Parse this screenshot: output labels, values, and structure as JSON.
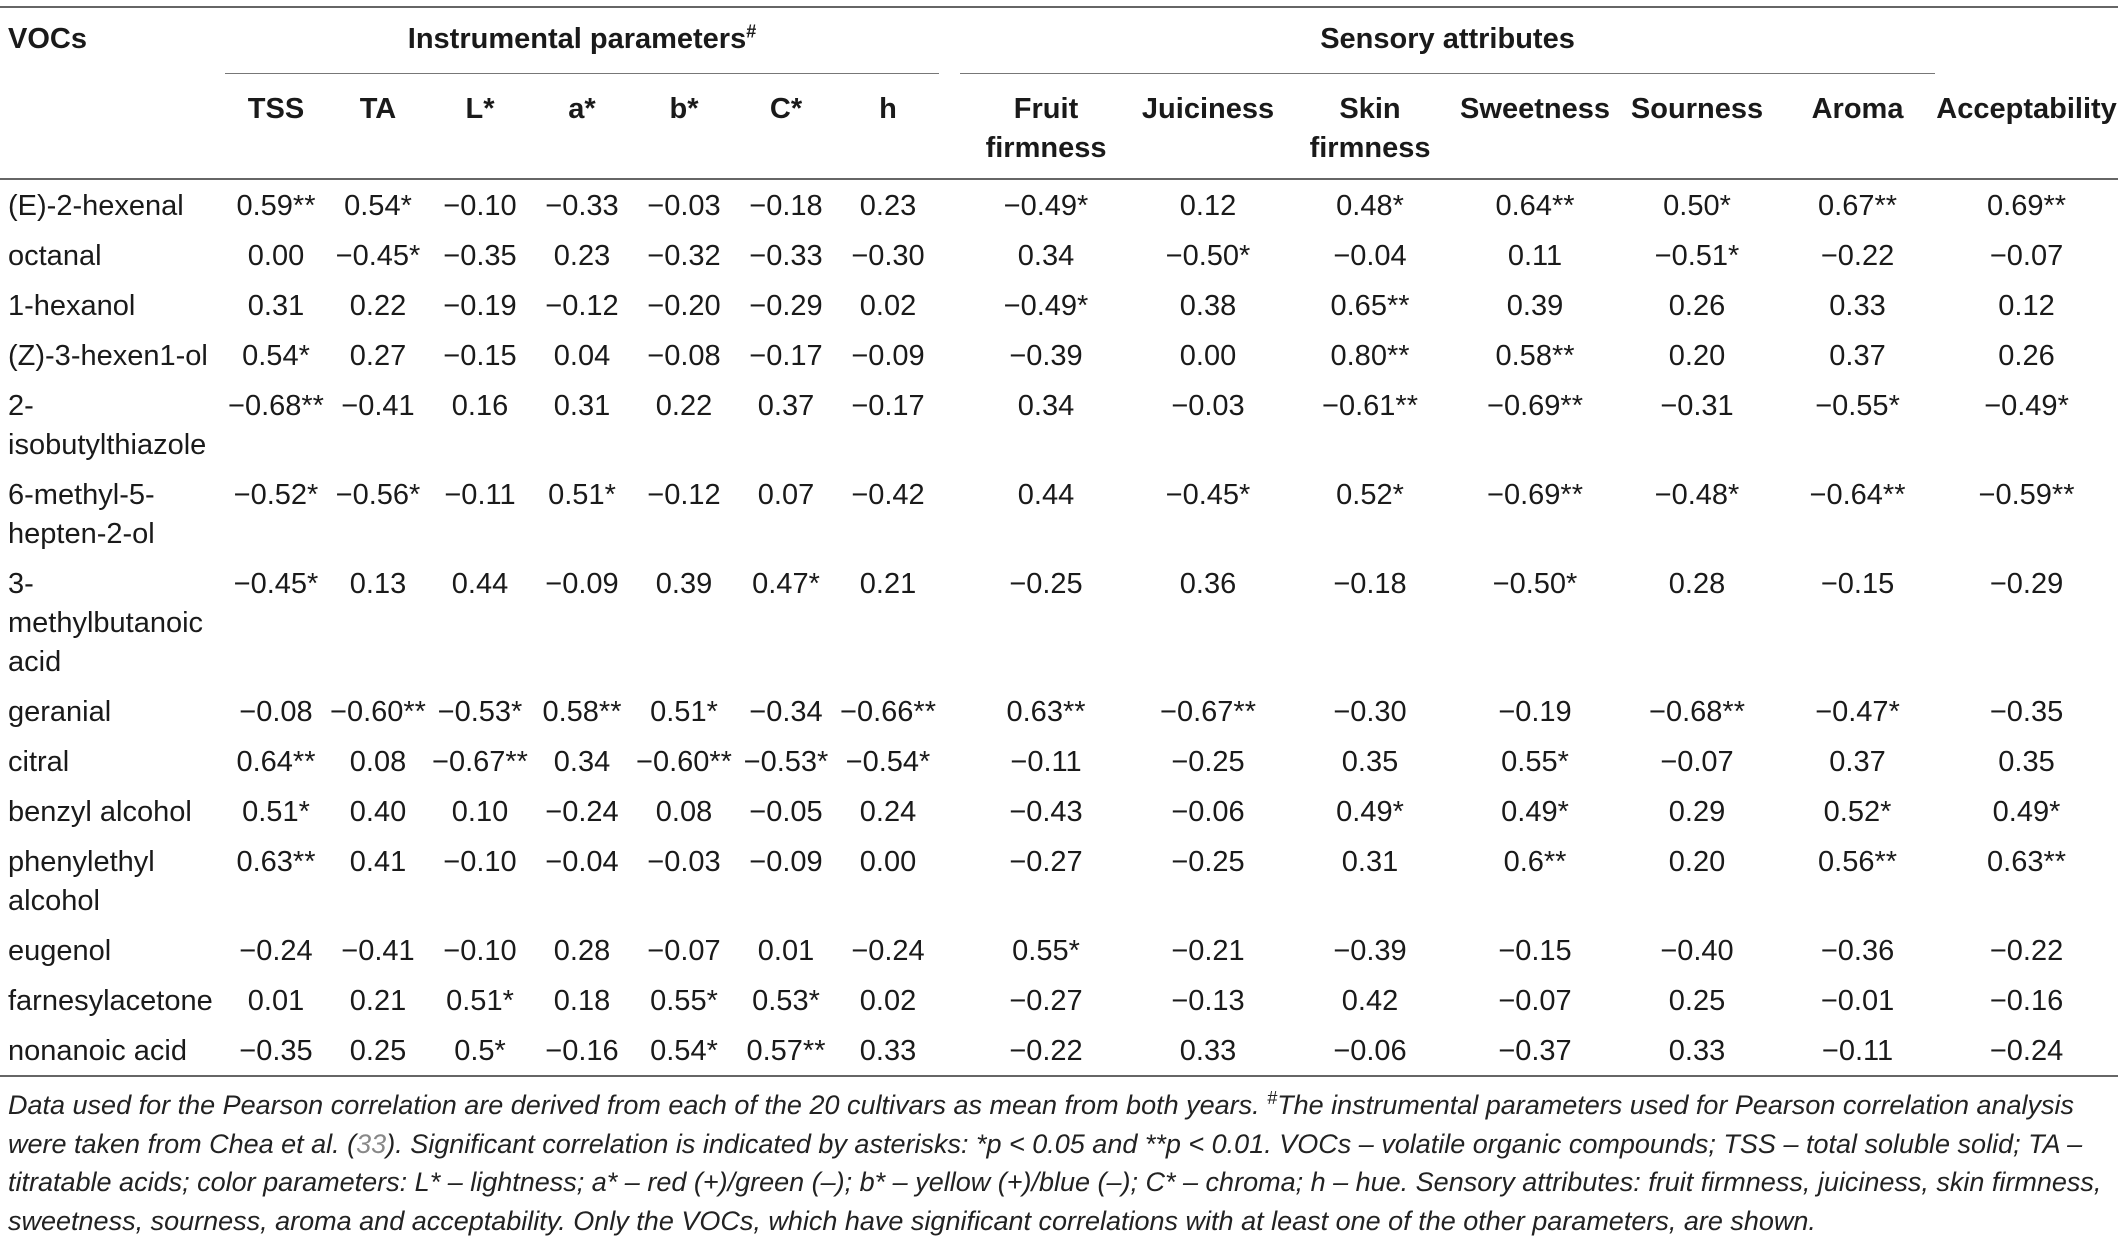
{
  "header": {
    "vocs": "VOCs",
    "instrumental": "Instrumental parameters",
    "instrumental_mark": "#",
    "sensory": "Sensory attributes",
    "instrumental_cols": [
      "TSS",
      "TA",
      "L*",
      "a*",
      "b*",
      "C*",
      "h"
    ],
    "sensory_cols": [
      "Fruit firmness",
      "Juiciness",
      "Skin firmness",
      "Sweetness",
      "Sourness",
      "Aroma",
      "Acceptability"
    ]
  },
  "rows": [
    {
      "name": "(E)-2-hexenal",
      "values": [
        "0.59**",
        "0.54*",
        "−0.10",
        "−0.33",
        "−0.03",
        "−0.18",
        "0.23",
        "−0.49*",
        "0.12",
        "0.48*",
        "0.64**",
        "0.50*",
        "0.67**",
        "0.69**"
      ]
    },
    {
      "name": "octanal",
      "values": [
        "0.00",
        "−0.45*",
        "−0.35",
        "0.23",
        "−0.32",
        "−0.33",
        "−0.30",
        "0.34",
        "−0.50*",
        "−0.04",
        "0.11",
        "−0.51*",
        "−0.22",
        "−0.07"
      ]
    },
    {
      "name": "1-hexanol",
      "values": [
        "0.31",
        "0.22",
        "−0.19",
        "−0.12",
        "−0.20",
        "−0.29",
        "0.02",
        "−0.49*",
        "0.38",
        "0.65**",
        "0.39",
        "0.26",
        "0.33",
        "0.12"
      ]
    },
    {
      "name": "(Z)-3-hexen1-ol",
      "values": [
        "0.54*",
        "0.27",
        "−0.15",
        "0.04",
        "−0.08",
        "−0.17",
        "−0.09",
        "−0.39",
        "0.00",
        "0.80**",
        "0.58**",
        "0.20",
        "0.37",
        "0.26"
      ]
    },
    {
      "name": "2-isobutylthiazole",
      "values": [
        "−0.68**",
        "−0.41",
        "0.16",
        "0.31",
        "0.22",
        "0.37",
        "−0.17",
        "0.34",
        "−0.03",
        "−0.61**",
        "−0.69**",
        "−0.31",
        "−0.55*",
        "−0.49*"
      ]
    },
    {
      "name": "6-methyl-5-hepten-2-ol",
      "values": [
        "−0.52*",
        "−0.56*",
        "−0.11",
        "0.51*",
        "−0.12",
        "0.07",
        "−0.42",
        "0.44",
        "−0.45*",
        "0.52*",
        "−0.69**",
        "−0.48*",
        "−0.64**",
        "−0.59**"
      ]
    },
    {
      "name": "3-methylbutanoic acid",
      "values": [
        "−0.45*",
        "0.13",
        "0.44",
        "−0.09",
        "0.39",
        "0.47*",
        "0.21",
        "−0.25",
        "0.36",
        "−0.18",
        "−0.50*",
        "0.28",
        "−0.15",
        "−0.29"
      ]
    },
    {
      "name": "geranial",
      "values": [
        "−0.08",
        "−0.60**",
        "−0.53*",
        "0.58**",
        "0.51*",
        "−0.34",
        "−0.66**",
        "0.63**",
        "−0.67**",
        "−0.30",
        "−0.19",
        "−0.68**",
        "−0.47*",
        "−0.35"
      ]
    },
    {
      "name": "citral",
      "values": [
        "0.64**",
        "0.08",
        "−0.67**",
        "0.34",
        "−0.60**",
        "−0.53*",
        "−0.54*",
        "−0.11",
        "−0.25",
        "0.35",
        "0.55*",
        "−0.07",
        "0.37",
        "0.35"
      ]
    },
    {
      "name": "benzyl alcohol",
      "values": [
        "0.51*",
        "0.40",
        "0.10",
        "−0.24",
        "0.08",
        "−0.05",
        "0.24",
        "−0.43",
        "−0.06",
        "0.49*",
        "0.49*",
        "0.29",
        "0.52*",
        "0.49*"
      ]
    },
    {
      "name": "phenylethyl alcohol",
      "values": [
        "0.63**",
        "0.41",
        "−0.10",
        "−0.04",
        "−0.03",
        "−0.09",
        "0.00",
        "−0.27",
        "−0.25",
        "0.31",
        "0.6**",
        "0.20",
        "0.56**",
        "0.63**"
      ]
    },
    {
      "name": "eugenol",
      "values": [
        "−0.24",
        "−0.41",
        "−0.10",
        "0.28",
        "−0.07",
        "0.01",
        "−0.24",
        "0.55*",
        "−0.21",
        "−0.39",
        "−0.15",
        "−0.40",
        "−0.36",
        "−0.22"
      ]
    },
    {
      "name": "farnesylacetone",
      "values": [
        "0.01",
        "0.21",
        "0.51*",
        "0.18",
        "0.55*",
        "0.53*",
        "0.02",
        "−0.27",
        "−0.13",
        "0.42",
        "−0.07",
        "0.25",
        "−0.01",
        "−0.16"
      ]
    },
    {
      "name": "nonanoic acid",
      "values": [
        "−0.35",
        "0.25",
        "0.5*",
        "−0.16",
        "0.54*",
        "0.57**",
        "0.33",
        "−0.22",
        "0.33",
        "−0.06",
        "−0.37",
        "0.33",
        "−0.11",
        "−0.24"
      ]
    }
  ],
  "footnote": {
    "part1": "Data used for the Pearson correlation are derived from each of the 20 cultivars as mean from both years. ",
    "mark": "#",
    "part2": "The instrumental parameters used for Pearson correlation analysis were taken from Chea et al. (",
    "ref": "33",
    "part3": "). Significant correlation is indicated by asterisks: *p < 0.05 and **p < 0.01. VOCs – volatile organic compounds; TSS – total soluble solid; TA – titratable acids; color parameters: L* – lightness; a* – red (+)/green (–); b* – yellow (+)/blue (–); C* – chroma; h – hue. Sensory attributes: fruit firmness, juiciness, skin firmness, sweetness, sourness, aroma and acceptability. Only the VOCs, which have significant correlations with at least one of the other parameters, are shown."
  }
}
